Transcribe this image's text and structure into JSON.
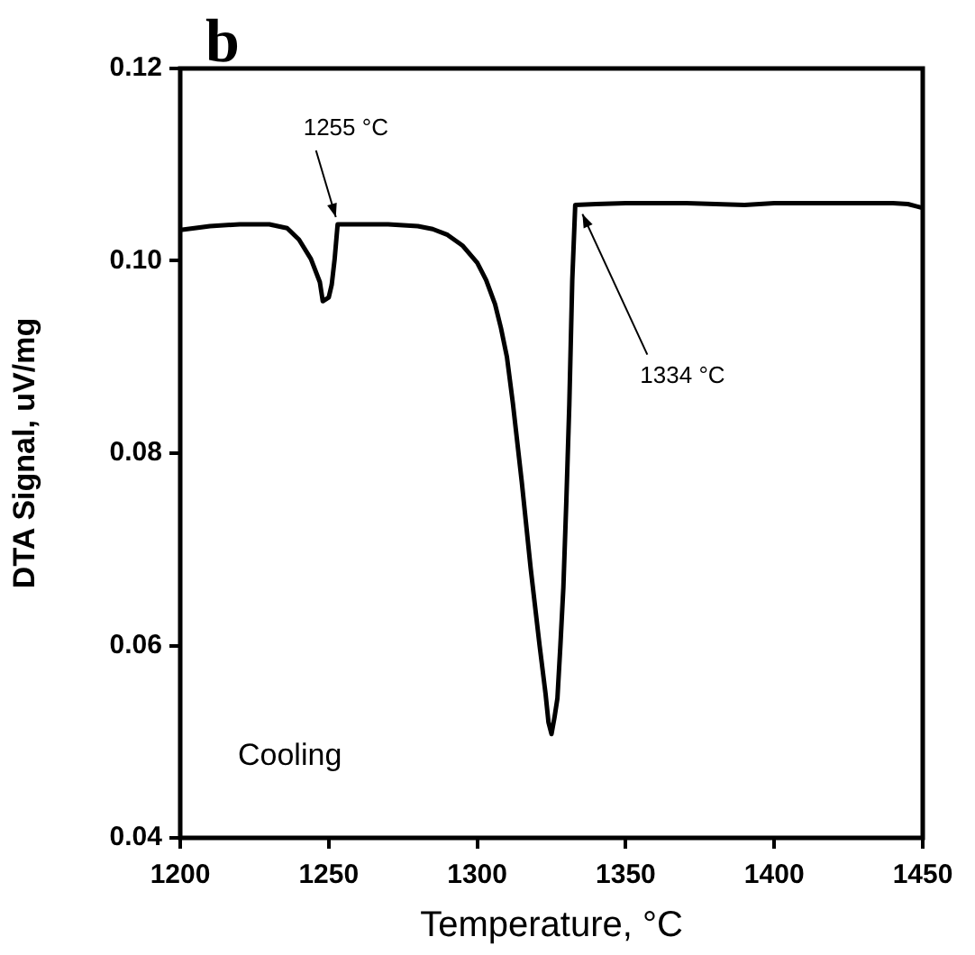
{
  "chart_data": {
    "type": "line",
    "xlabel": "Temperature, °C",
    "ylabel": "DTA Signal, uV/mg",
    "xlim": [
      1200,
      1450
    ],
    "xticks": [
      1200,
      1250,
      1300,
      1350,
      1400,
      1450
    ],
    "ylim": [
      0.04,
      0.12
    ],
    "yticks": [
      0.04,
      0.06,
      0.08,
      {
        "value": 0.1,
        "label": "0.10"
      },
      0.12
    ],
    "grid": false,
    "legend": false,
    "marker": "none",
    "line_style": "solid",
    "series": [
      {
        "color": "#000000",
        "x": [
          1200,
          1210,
          1220,
          1230,
          1236,
          1240,
          1244,
          1247,
          1248,
          1250,
          1251,
          1252,
          1253,
          1260,
          1270,
          1280,
          1285,
          1290,
          1295,
          1300,
          1303,
          1306,
          1308,
          1310,
          1312,
          1315,
          1318,
          1321,
          1323,
          1324,
          1325,
          1326,
          1327,
          1328,
          1329,
          1330,
          1331,
          1332,
          1333,
          1340,
          1350,
          1370,
          1390,
          1400,
          1420,
          1440,
          1445,
          1450
        ],
        "values": [
          0.1032,
          0.1036,
          0.1038,
          0.1038,
          0.1034,
          0.1022,
          0.1002,
          0.0978,
          0.0958,
          0.0962,
          0.0975,
          0.1002,
          0.1038,
          0.1038,
          0.1038,
          0.1036,
          0.1033,
          0.1027,
          0.1016,
          0.0998,
          0.098,
          0.0955,
          0.093,
          0.09,
          0.0852,
          0.077,
          0.068,
          0.06,
          0.055,
          0.052,
          0.0508,
          0.0525,
          0.0545,
          0.06,
          0.066,
          0.075,
          0.085,
          0.098,
          0.1058,
          0.1059,
          0.106,
          0.106,
          0.1058,
          0.106,
          0.106,
          0.106,
          0.1059,
          0.1055
        ]
      }
    ],
    "annotations": [
      "b",
      {
        "text": "1255 °C",
        "x": 1253,
        "y": 0.1038
      },
      {
        "text": "1334 °C",
        "x": 1333,
        "y": 0.1058
      },
      "Cooling"
    ]
  }
}
